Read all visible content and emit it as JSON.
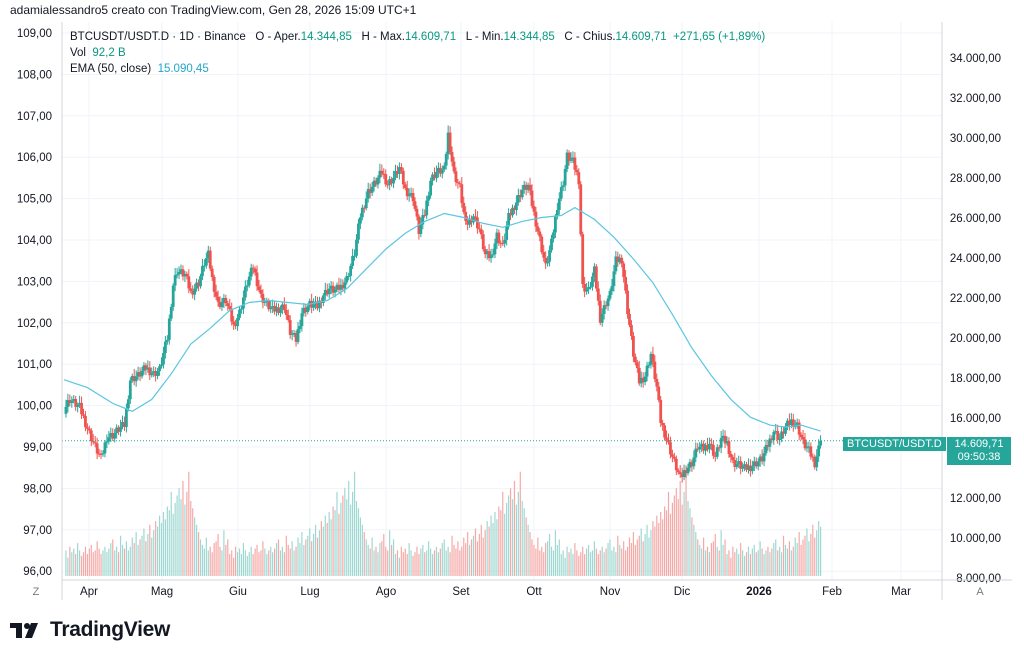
{
  "header": {
    "author_line": "adamialessandro5 creato con TradingView.com, Gen 28, 2026 15:09 UTC+1"
  },
  "legend": {
    "symbol": "BTCUSDT/USDT.D · 1D · Binance",
    "open_label": "O - Aper.",
    "open_value": "14.344,85",
    "high_label": "H - Max.",
    "high_value": "14.609,71",
    "low_label": "L - Min.",
    "low_value": "14.344,85",
    "close_label": "C - Chius.",
    "close_value": "14.609,71",
    "change": "+271,65 (+1,89%)",
    "vol_label": "Vol",
    "vol_value": "92,2 B",
    "ema_label": "EMA (50, close)",
    "ema_value": "15.090,45"
  },
  "price_label": {
    "symbol": "BTCUSDT/USDT.D",
    "price": "14.609,71",
    "countdown": "09:50:38"
  },
  "axis_buttons": {
    "left": "Z",
    "right": "A"
  },
  "brand": {
    "name": "TradingView"
  },
  "colors": {
    "up": "#26a69a",
    "down": "#ef5350",
    "ema": "#5cc6e0",
    "grid": "#f0f3fa",
    "text": "#131722"
  },
  "chart_data": {
    "type": "candlestick",
    "title": "BTCUSDT/USDT.D · 1D · Binance",
    "left_axis_ticks": [
      "109,00",
      "108,00",
      "107,00",
      "106,00",
      "105,00",
      "104,00",
      "103,00",
      "102,00",
      "101,00",
      "100,00",
      "99,00",
      "98,00",
      "97,00",
      "96,00"
    ],
    "right_axis_ticks": [
      "34.000,00",
      "32.000,00",
      "30.000,00",
      "28.000,00",
      "26.000,00",
      "24.000,00",
      "22.000,00",
      "20.000,00",
      "18.000,00",
      "16.000,00",
      "14.000,00",
      "12.000,00",
      "10.000,00",
      "8.000,00"
    ],
    "right_axis_range": [
      7900,
      35200
    ],
    "x_ticks": [
      "Apr",
      "Mag",
      "Giu",
      "Lug",
      "Ago",
      "Set",
      "Ott",
      "Nov",
      "Dic",
      "2026",
      "Feb",
      "Mar"
    ],
    "last_price": 14609.71,
    "ema_period": 50,
    "close_path": [
      [
        0,
        16200
      ],
      [
        3,
        16700
      ],
      [
        8,
        16300
      ],
      [
        13,
        15000
      ],
      [
        16,
        14300
      ],
      [
        19,
        13700
      ],
      [
        22,
        14800
      ],
      [
        25,
        14900
      ],
      [
        28,
        15200
      ],
      [
        31,
        15400
      ],
      [
        34,
        17700
      ],
      [
        38,
        17900
      ],
      [
        42,
        18300
      ],
      [
        46,
        18000
      ],
      [
        49,
        18200
      ],
      [
        53,
        19800
      ],
      [
        56,
        22500
      ],
      [
        58,
        23200
      ],
      [
        62,
        23000
      ],
      [
        65,
        22100
      ],
      [
        69,
        22600
      ],
      [
        72,
        23600
      ],
      [
        74,
        24000
      ],
      [
        76,
        22800
      ],
      [
        79,
        21500
      ],
      [
        83,
        21700
      ],
      [
        87,
        20400
      ],
      [
        90,
        21100
      ],
      [
        94,
        22600
      ],
      [
        97,
        23400
      ],
      [
        101,
        21900
      ],
      [
        104,
        21500
      ],
      [
        107,
        21200
      ],
      [
        110,
        21300
      ],
      [
        113,
        21400
      ],
      [
        116,
        20100
      ],
      [
        119,
        19700
      ],
      [
        122,
        21100
      ],
      [
        126,
        21500
      ],
      [
        130,
        21400
      ],
      [
        133,
        22000
      ],
      [
        136,
        22300
      ],
      [
        139,
        22200
      ],
      [
        142,
        22400
      ],
      [
        145,
        22800
      ],
      [
        149,
        24100
      ],
      [
        152,
        26000
      ],
      [
        156,
        27200
      ],
      [
        160,
        27700
      ],
      [
        163,
        28200
      ],
      [
        166,
        27600
      ],
      [
        169,
        27900
      ],
      [
        172,
        28400
      ],
      [
        175,
        27300
      ],
      [
        179,
        26900
      ],
      [
        182,
        25200
      ],
      [
        185,
        26100
      ],
      [
        188,
        27800
      ],
      [
        191,
        28200
      ],
      [
        195,
        28300
      ],
      [
        197,
        30100
      ],
      [
        200,
        28100
      ],
      [
        203,
        27400
      ],
      [
        206,
        25500
      ],
      [
        210,
        26000
      ],
      [
        213,
        25300
      ],
      [
        216,
        24000
      ],
      [
        219,
        23900
      ],
      [
        222,
        25000
      ],
      [
        225,
        24400
      ],
      [
        228,
        25900
      ],
      [
        232,
        26700
      ],
      [
        235,
        27300
      ],
      [
        238,
        27500
      ],
      [
        241,
        26100
      ],
      [
        244,
        24800
      ],
      [
        247,
        23400
      ],
      [
        250,
        24600
      ],
      [
        253,
        26500
      ],
      [
        256,
        27700
      ],
      [
        258,
        29000
      ],
      [
        261,
        28700
      ],
      [
        264,
        27800
      ],
      [
        266,
        22400
      ],
      [
        269,
        22200
      ],
      [
        272,
        23200
      ],
      [
        275,
        20800
      ],
      [
        278,
        21600
      ],
      [
        280,
        22000
      ],
      [
        283,
        23700
      ],
      [
        286,
        23800
      ],
      [
        289,
        21200
      ],
      [
        292,
        19000
      ],
      [
        295,
        17600
      ],
      [
        298,
        17900
      ],
      [
        301,
        19000
      ],
      [
        304,
        17300
      ],
      [
        306,
        15600
      ],
      [
        309,
        14700
      ],
      [
        312,
        13800
      ],
      [
        316,
        12700
      ],
      [
        319,
        13200
      ],
      [
        322,
        13500
      ],
      [
        325,
        14300
      ],
      [
        328,
        14200
      ],
      [
        331,
        14500
      ],
      [
        334,
        13800
      ],
      [
        337,
        14700
      ],
      [
        340,
        14500
      ],
      [
        343,
        13500
      ],
      [
        346,
        13400
      ],
      [
        349,
        13200
      ],
      [
        352,
        13300
      ],
      [
        355,
        13500
      ],
      [
        358,
        13700
      ],
      [
        361,
        14400
      ],
      [
        364,
        15100
      ],
      [
        367,
        14700
      ],
      [
        370,
        15300
      ],
      [
        373,
        15600
      ],
      [
        376,
        15400
      ],
      [
        379,
        14500
      ],
      [
        382,
        14100
      ],
      [
        385,
        13500
      ],
      [
        388,
        14600
      ]
    ],
    "ema_path": [
      [
        0,
        17700
      ],
      [
        12,
        17300
      ],
      [
        25,
        16500
      ],
      [
        35,
        16100
      ],
      [
        45,
        16700
      ],
      [
        55,
        18000
      ],
      [
        65,
        19500
      ],
      [
        75,
        20300
      ],
      [
        85,
        21200
      ],
      [
        95,
        21600
      ],
      [
        105,
        21700
      ],
      [
        115,
        21600
      ],
      [
        125,
        21500
      ],
      [
        135,
        21700
      ],
      [
        145,
        22300
      ],
      [
        155,
        23300
      ],
      [
        165,
        24300
      ],
      [
        175,
        25100
      ],
      [
        185,
        25700
      ],
      [
        195,
        26100
      ],
      [
        205,
        25900
      ],
      [
        215,
        25600
      ],
      [
        225,
        25400
      ],
      [
        235,
        25700
      ],
      [
        245,
        25900
      ],
      [
        255,
        26000
      ],
      [
        262,
        26400
      ],
      [
        272,
        25800
      ],
      [
        282,
        24900
      ],
      [
        292,
        23800
      ],
      [
        302,
        22600
      ],
      [
        312,
        21000
      ],
      [
        322,
        19300
      ],
      [
        332,
        17900
      ],
      [
        342,
        16700
      ],
      [
        352,
        15800
      ],
      [
        362,
        15400
      ],
      [
        370,
        15300
      ],
      [
        378,
        15400
      ],
      [
        388,
        15100
      ]
    ],
    "volume_range": [
      0,
      82
    ],
    "volume_sample": [
      12,
      14,
      10,
      16,
      13,
      15,
      12,
      18,
      14,
      11,
      13,
      16,
      12,
      15,
      17,
      13,
      14,
      19,
      15,
      12,
      14,
      16,
      13,
      15,
      18,
      20,
      14,
      16,
      13,
      22,
      17,
      15,
      19,
      14,
      16,
      21,
      18,
      24,
      17,
      20,
      22,
      26,
      19,
      23,
      28,
      21,
      25,
      30,
      27,
      33,
      29,
      35,
      31,
      38,
      36,
      46,
      34,
      40,
      44,
      48,
      42,
      52,
      39,
      46,
      57,
      41,
      37,
      32,
      28,
      24,
      20,
      17,
      15,
      21,
      14,
      16,
      13,
      18,
      19,
      23,
      16,
      14,
      25,
      17,
      20
    ]
  }
}
